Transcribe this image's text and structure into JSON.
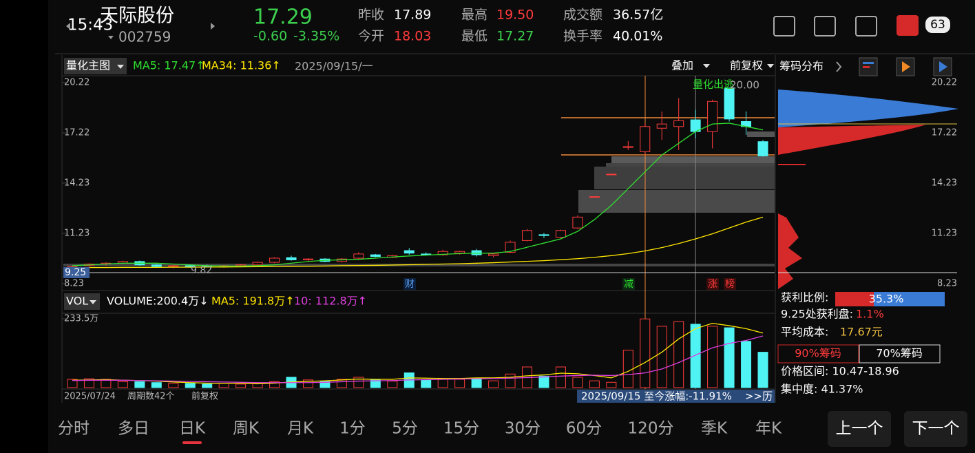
{
  "status_bar": {
    "time": "15:43",
    "battery": "63"
  },
  "header": {
    "name": "天际股份",
    "code": "002759",
    "price": "17.29",
    "change": "-0.60",
    "change_pct": "-3.35%",
    "stats": [
      [
        "昨收",
        "17.89"
      ],
      [
        "今开",
        "18.03"
      ],
      [
        "最高",
        "19.50"
      ],
      [
        "最低",
        "17.27"
      ],
      [
        "成交额",
        "36.57亿"
      ],
      [
        "换手率",
        "40.01%"
      ]
    ]
  },
  "kline": {
    "indicator": "量化主图",
    "ma5_label": "MA5: 17.47↑",
    "ma34_label": "MA34: 11.36↑",
    "date": "2025/09/15/一",
    "overlay": "叠加",
    "adjust": "前复权",
    "ylim": [
      8.23,
      20.22
    ],
    "yticks": [
      20.22,
      17.22,
      14.23,
      11.23,
      8.23
    ],
    "candles": [
      [
        9.2,
        9.3,
        9.12,
        9.25
      ],
      [
        9.3,
        9.45,
        9.2,
        9.4
      ],
      [
        9.4,
        9.5,
        9.3,
        9.45
      ],
      [
        9.45,
        9.6,
        9.4,
        9.55
      ],
      [
        9.55,
        9.6,
        9.3,
        9.35
      ],
      [
        9.35,
        9.4,
        9.2,
        9.25
      ],
      [
        9.25,
        9.35,
        9.15,
        9.3
      ],
      [
        9.3,
        9.38,
        9.18,
        9.28
      ],
      [
        9.28,
        9.36,
        9.2,
        9.26
      ],
      [
        9.26,
        9.34,
        9.18,
        9.3
      ],
      [
        9.3,
        9.4,
        9.22,
        9.35
      ],
      [
        9.35,
        9.55,
        9.3,
        9.5
      ],
      [
        9.5,
        9.8,
        9.45,
        9.75
      ],
      [
        9.78,
        9.9,
        9.6,
        9.65
      ],
      [
        9.65,
        9.75,
        9.55,
        9.7
      ],
      [
        9.7,
        9.75,
        9.5,
        9.55
      ],
      [
        9.55,
        9.75,
        9.5,
        9.7
      ],
      [
        9.75,
        10.1,
        9.7,
        10.0
      ],
      [
        9.95,
        10.0,
        9.8,
        9.85
      ],
      [
        9.8,
        9.95,
        9.75,
        9.9
      ],
      [
        10.2,
        10.35,
        9.95,
        10.05
      ],
      [
        10.0,
        10.1,
        9.9,
        9.95
      ],
      [
        9.95,
        10.25,
        9.9,
        10.15
      ],
      [
        10.05,
        10.2,
        9.95,
        10.15
      ],
      [
        10.2,
        10.3,
        9.85,
        9.95
      ],
      [
        9.9,
        10.05,
        9.8,
        10.0
      ],
      [
        10.1,
        10.8,
        10.05,
        10.7
      ],
      [
        10.8,
        11.5,
        10.75,
        11.4
      ],
      [
        11.15,
        11.25,
        10.95,
        11.1
      ],
      [
        11.0,
        11.45,
        10.95,
        11.4
      ],
      [
        11.55,
        12.3,
        11.5,
        12.2
      ],
      [
        13.42,
        13.42,
        13.42,
        13.42
      ],
      [
        14.76,
        14.76,
        14.76,
        14.76
      ],
      [
        16.4,
        16.73,
        16.2,
        16.4
      ],
      [
        16.1,
        17.8,
        15.9,
        17.6
      ],
      [
        17.5,
        18.5,
        16.8,
        17.75
      ],
      [
        17.6,
        19.3,
        16.2,
        17.95
      ],
      [
        18.0,
        18.6,
        16.9,
        17.3
      ],
      [
        17.3,
        19.2,
        16.3,
        19.1
      ],
      [
        19.9,
        19.9,
        17.9,
        18.05
      ],
      [
        17.9,
        18.5,
        17.1,
        17.6
      ],
      [
        16.7,
        16.8,
        15.8,
        15.85
      ]
    ],
    "ma5": [
      9.3,
      9.35,
      9.4,
      9.45,
      9.45,
      9.45,
      9.4,
      9.35,
      9.3,
      9.28,
      9.28,
      9.3,
      9.35,
      9.45,
      9.55,
      9.62,
      9.65,
      9.68,
      9.75,
      9.82,
      9.88,
      9.93,
      9.98,
      10.02,
      10.05,
      10.05,
      10.15,
      10.4,
      10.65,
      10.9,
      11.35,
      12.05,
      12.9,
      13.9,
      14.9,
      15.9,
      16.6,
      17.3,
      17.75,
      17.8,
      17.6,
      17.4
    ],
    "ma34": [
      9.18,
      9.19,
      9.19,
      9.2,
      9.2,
      9.2,
      9.21,
      9.21,
      9.22,
      9.22,
      9.23,
      9.24,
      9.25,
      9.26,
      9.27,
      9.28,
      9.3,
      9.31,
      9.32,
      9.34,
      9.36,
      9.38,
      9.4,
      9.42,
      9.45,
      9.48,
      9.52,
      9.56,
      9.6,
      9.66,
      9.72,
      9.8,
      9.9,
      10.02,
      10.18,
      10.38,
      10.62,
      10.9,
      11.2,
      11.55,
      11.9,
      12.2
    ],
    "annotations": {
      "signal": "量化出逃",
      "high": "20.00",
      "low": "9.82",
      "current": "9.25"
    },
    "events": [
      "财",
      "减",
      "涨",
      "榜"
    ]
  },
  "volume": {
    "indicator": "VOL",
    "volume_label": "VOLUME:200.4万↓",
    "ma5_label": "MA5: 191.8万↑",
    "ma10_label": "10: 112.8万↑",
    "ylim": [
      0,
      233.5
    ],
    "yticks": [
      {
        "value": 233.5,
        "label": "233.5万"
      }
    ],
    "values": [
      28,
      30,
      28,
      20,
      20,
      17,
      15,
      14,
      12,
      14,
      12,
      14,
      20,
      35,
      26,
      22,
      28,
      35,
      28,
      22,
      50,
      25,
      30,
      28,
      30,
      23,
      46,
      70,
      39,
      70,
      35,
      23,
      18,
      127,
      233,
      208,
      224,
      215,
      208,
      203,
      157,
      120
    ],
    "ma5": [
      25,
      26,
      27,
      25,
      24,
      22,
      19,
      17,
      15,
      14,
      14,
      13,
      15,
      19,
      21,
      23,
      26,
      29,
      28,
      28,
      33,
      32,
      31,
      31,
      33,
      33,
      35,
      40,
      43,
      49,
      47,
      41,
      33,
      55,
      85,
      120,
      165,
      200,
      218,
      210,
      200,
      185
    ],
    "ma10": [
      24,
      25,
      25,
      25,
      24,
      23,
      22,
      21,
      20,
      19,
      18,
      17,
      17,
      17,
      17,
      18,
      20,
      22,
      23,
      24,
      26,
      27,
      28,
      29,
      30,
      31,
      32,
      34,
      36,
      39,
      41,
      42,
      41,
      44,
      50,
      63,
      85,
      110,
      135,
      150,
      160,
      175
    ]
  },
  "chart_footer": {
    "start_date": "2025/07/24",
    "periods": "周期数42个",
    "adjust": "前复权",
    "range_info": "2025/09/15 至今涨幅:-11.91%",
    "more": ">>历"
  },
  "chips": {
    "title": "筹码分布",
    "profit_label": "获利比例:",
    "profit": "35.3%",
    "profit_at_label": "9.25处获利盘:",
    "profit_at": "1.1%",
    "avg_cost_label": "平均成本:",
    "avg_cost": "17.67元",
    "tabs": [
      "90%筹码",
      "70%筹码"
    ],
    "range": "价格区间: 10.47-18.96",
    "concentration": "集中度: 41.37%"
  },
  "tabs": [
    "分时",
    "多日",
    "日K",
    "周K",
    "月K",
    "1分",
    "5分",
    "15分",
    "30分",
    "60分",
    "120分",
    "季K",
    "年K"
  ],
  "buttons": [
    "上一个",
    "下一个"
  ]
}
